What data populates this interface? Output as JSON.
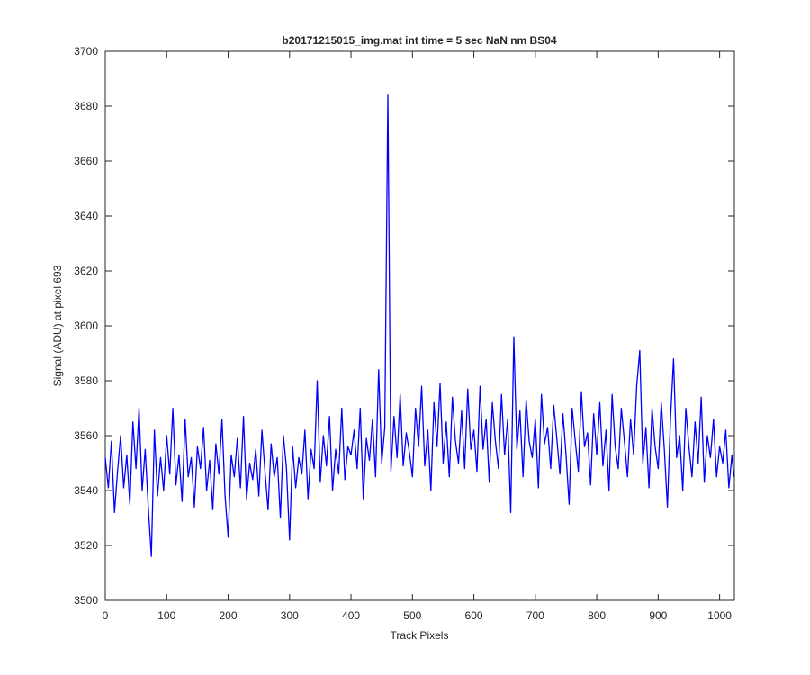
{
  "chart_data": {
    "type": "line",
    "title": "b20171215015_img.mat int time = 5 sec  NaN nm BS04",
    "xlabel": "Track Pixels",
    "ylabel": "Signal (ADU) at pixel 693",
    "color": "#0000ff",
    "xlim": [
      0,
      1024
    ],
    "ylim": [
      3500,
      3700
    ],
    "xticks": [
      0,
      100,
      200,
      300,
      400,
      500,
      600,
      700,
      800,
      900,
      1000
    ],
    "yticks": [
      3500,
      3520,
      3540,
      3560,
      3580,
      3600,
      3620,
      3640,
      3660,
      3680,
      3700
    ],
    "x": [
      0,
      5,
      10,
      15,
      20,
      25,
      30,
      35,
      40,
      45,
      50,
      55,
      60,
      65,
      70,
      75,
      80,
      85,
      90,
      95,
      100,
      105,
      110,
      115,
      120,
      125,
      130,
      135,
      140,
      145,
      150,
      155,
      160,
      165,
      170,
      175,
      180,
      185,
      190,
      195,
      200,
      205,
      210,
      215,
      220,
      225,
      230,
      235,
      240,
      245,
      250,
      255,
      260,
      265,
      270,
      275,
      280,
      285,
      290,
      295,
      300,
      305,
      310,
      315,
      320,
      325,
      330,
      335,
      340,
      345,
      350,
      355,
      360,
      365,
      370,
      375,
      380,
      385,
      390,
      395,
      400,
      405,
      410,
      415,
      420,
      425,
      430,
      435,
      440,
      445,
      450,
      455,
      460,
      465,
      470,
      475,
      480,
      485,
      490,
      495,
      500,
      505,
      510,
      515,
      520,
      525,
      530,
      535,
      540,
      545,
      550,
      555,
      560,
      565,
      570,
      575,
      580,
      585,
      590,
      595,
      600,
      605,
      610,
      615,
      620,
      625,
      630,
      635,
      640,
      645,
      650,
      655,
      660,
      665,
      670,
      675,
      680,
      685,
      690,
      695,
      700,
      705,
      710,
      715,
      720,
      725,
      730,
      735,
      740,
      745,
      750,
      755,
      760,
      765,
      770,
      775,
      780,
      785,
      790,
      795,
      800,
      805,
      810,
      815,
      820,
      825,
      830,
      835,
      840,
      845,
      850,
      855,
      860,
      865,
      870,
      875,
      880,
      885,
      890,
      895,
      900,
      905,
      910,
      915,
      920,
      925,
      930,
      935,
      940,
      945,
      950,
      955,
      960,
      965,
      970,
      975,
      980,
      985,
      990,
      995,
      1000,
      1005,
      1010,
      1015,
      1020,
      1023
    ],
    "values": [
      3552,
      3541,
      3558,
      3532,
      3547,
      3560,
      3541,
      3553,
      3535,
      3565,
      3548,
      3570,
      3540,
      3555,
      3534,
      3516,
      3562,
      3538,
      3552,
      3540,
      3560,
      3546,
      3570,
      3542,
      3553,
      3536,
      3566,
      3545,
      3552,
      3534,
      3556,
      3548,
      3563,
      3540,
      3551,
      3533,
      3557,
      3546,
      3566,
      3538,
      3523,
      3553,
      3545,
      3559,
      3541,
      3567,
      3537,
      3550,
      3544,
      3555,
      3538,
      3562,
      3547,
      3533,
      3557,
      3545,
      3552,
      3530,
      3560,
      3548,
      3522,
      3556,
      3541,
      3552,
      3546,
      3562,
      3537,
      3555,
      3548,
      3580,
      3543,
      3560,
      3549,
      3567,
      3540,
      3555,
      3546,
      3570,
      3544,
      3556,
      3553,
      3562,
      3548,
      3570,
      3537,
      3559,
      3551,
      3566,
      3545,
      3584,
      3550,
      3563,
      3684,
      3547,
      3567,
      3552,
      3575,
      3549,
      3561,
      3554,
      3545,
      3570,
      3556,
      3578,
      3549,
      3562,
      3540,
      3572,
      3556,
      3579,
      3550,
      3565,
      3545,
      3574,
      3558,
      3550,
      3569,
      3548,
      3577,
      3555,
      3562,
      3547,
      3578,
      3555,
      3566,
      3543,
      3572,
      3558,
      3548,
      3575,
      3553,
      3566,
      3532,
      3596,
      3555,
      3569,
      3545,
      3573,
      3558,
      3552,
      3566,
      3541,
      3575,
      3557,
      3563,
      3548,
      3571,
      3559,
      3546,
      3568,
      3553,
      3535,
      3570,
      3558,
      3547,
      3576,
      3556,
      3561,
      3542,
      3568,
      3553,
      3572,
      3549,
      3562,
      3540,
      3575,
      3556,
      3548,
      3570,
      3558,
      3545,
      3566,
      3553,
      3578,
      3591,
      3550,
      3563,
      3541,
      3570,
      3556,
      3548,
      3572,
      3555,
      3534,
      3566,
      3588,
      3552,
      3560,
      3540,
      3570,
      3556,
      3545,
      3565,
      3550,
      3574,
      3543,
      3560,
      3552,
      3566,
      3545,
      3556,
      3550,
      3562,
      3541,
      3553,
      3545
    ]
  }
}
